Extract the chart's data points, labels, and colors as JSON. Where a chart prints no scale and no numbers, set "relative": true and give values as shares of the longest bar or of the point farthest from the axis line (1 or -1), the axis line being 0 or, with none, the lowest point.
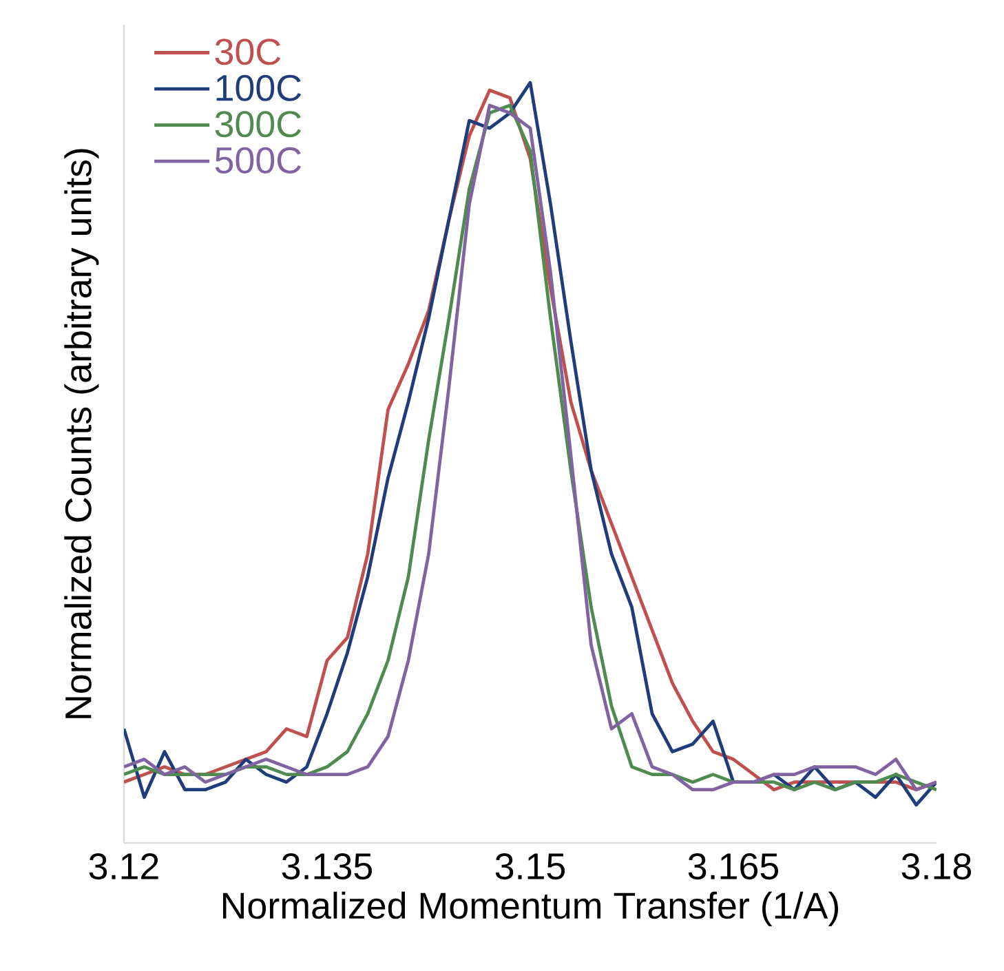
{
  "chart_data": {
    "type": "line",
    "xlabel": "Normalized Momentum Transfer (1/A)",
    "ylabel": "Normalized Counts (arbitrary units)",
    "relative": true,
    "x": [
      3.12,
      3.1215,
      3.123,
      3.1245,
      3.126,
      3.1275,
      3.129,
      3.1305,
      3.132,
      3.1335,
      3.135,
      3.1365,
      3.138,
      3.1395,
      3.141,
      3.1425,
      3.144,
      3.1455,
      3.147,
      3.1485,
      3.15,
      3.1515,
      3.153,
      3.1545,
      3.156,
      3.1575,
      3.159,
      3.1605,
      3.162,
      3.1635,
      3.165,
      3.1665,
      3.168,
      3.1695,
      3.171,
      3.1725,
      3.174,
      3.1755,
      3.177,
      3.1785,
      3.18
    ],
    "xlim": [
      3.12,
      3.18
    ],
    "xticks": [
      3.12,
      3.135,
      3.15,
      3.165,
      3.18
    ],
    "legend": "top left",
    "grid": false,
    "marker": "none",
    "line_style": "solid",
    "series": [
      {
        "name": "30C",
        "color": "#c0504d",
        "values": [
          0.08,
          0.09,
          0.1,
          0.09,
          0.09,
          0.1,
          0.11,
          0.12,
          0.15,
          0.14,
          0.24,
          0.27,
          0.38,
          0.57,
          0.63,
          0.7,
          0.82,
          0.93,
          0.99,
          0.98,
          0.9,
          0.73,
          0.58,
          0.49,
          0.42,
          0.35,
          0.28,
          0.21,
          0.16,
          0.12,
          0.11,
          0.09,
          0.07,
          0.08,
          0.08,
          0.08,
          0.08,
          0.08,
          0.08,
          0.07,
          0.08
        ]
      },
      {
        "name": "100C",
        "color": "#1f3d7a",
        "values": [
          0.15,
          0.06,
          0.12,
          0.07,
          0.07,
          0.08,
          0.11,
          0.09,
          0.08,
          0.1,
          0.17,
          0.25,
          0.35,
          0.48,
          0.58,
          0.69,
          0.82,
          0.95,
          0.94,
          0.96,
          1.0,
          0.84,
          0.66,
          0.49,
          0.38,
          0.31,
          0.17,
          0.12,
          0.13,
          0.16,
          0.08,
          0.08,
          0.09,
          0.07,
          0.1,
          0.07,
          0.08,
          0.06,
          0.09,
          0.05,
          0.08
        ]
      },
      {
        "name": "300C",
        "color": "#4f8a4f",
        "values": [
          0.09,
          0.1,
          0.09,
          0.09,
          0.09,
          0.09,
          0.1,
          0.1,
          0.09,
          0.09,
          0.1,
          0.12,
          0.17,
          0.24,
          0.35,
          0.53,
          0.69,
          0.86,
          0.96,
          0.97,
          0.91,
          0.69,
          0.49,
          0.31,
          0.18,
          0.1,
          0.09,
          0.09,
          0.08,
          0.09,
          0.08,
          0.08,
          0.08,
          0.07,
          0.08,
          0.07,
          0.08,
          0.08,
          0.09,
          0.08,
          0.07
        ]
      },
      {
        "name": "500C",
        "color": "#8064a2",
        "values": [
          0.1,
          0.11,
          0.09,
          0.1,
          0.08,
          0.09,
          0.1,
          0.11,
          0.1,
          0.09,
          0.09,
          0.09,
          0.1,
          0.14,
          0.24,
          0.38,
          0.6,
          0.84,
          0.97,
          0.96,
          0.94,
          0.75,
          0.51,
          0.26,
          0.15,
          0.17,
          0.1,
          0.09,
          0.07,
          0.07,
          0.08,
          0.08,
          0.09,
          0.09,
          0.1,
          0.1,
          0.1,
          0.09,
          0.11,
          0.07,
          0.08
        ]
      }
    ]
  }
}
